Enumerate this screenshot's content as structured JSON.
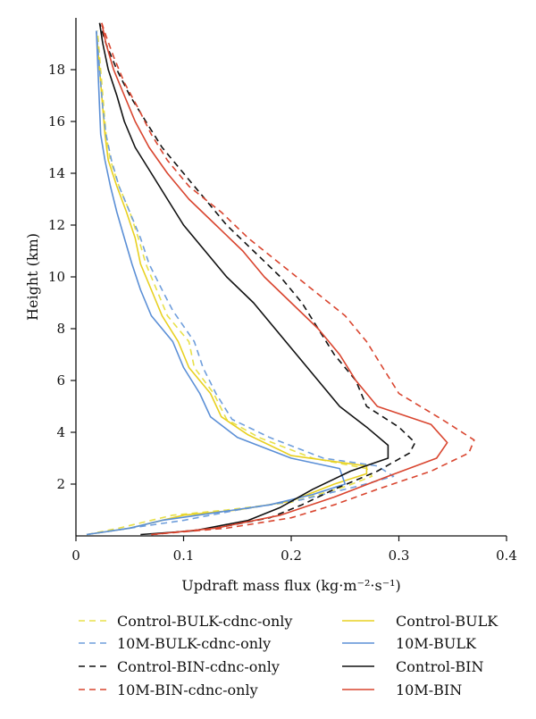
{
  "chart_data": {
    "type": "line",
    "title": "",
    "xlabel": "Updraft mass flux (kg·m⁻²·s⁻¹)",
    "ylabel": "Height (km)",
    "xlim": [
      0,
      0.4
    ],
    "ylim": [
      0,
      20
    ],
    "x_ticks": [
      0,
      0.1,
      0.2,
      0.3,
      0.4
    ],
    "x_tick_labels": [
      "0",
      "0.1",
      "0.2",
      "0.3",
      "0.4"
    ],
    "y_ticks": [
      2,
      4,
      6,
      8,
      10,
      12,
      14,
      16,
      18
    ],
    "y_tick_labels": [
      "2",
      "4",
      "6",
      "8",
      "10",
      "12",
      "14",
      "16",
      "18"
    ],
    "grid": false,
    "legend": "bottom, two columns",
    "series": [
      {
        "name": "Control-BULK-cdnc-only",
        "color": "#e8e04a",
        "dash": "dashed",
        "points": [
          [
            0.01,
            0.05
          ],
          [
            0.04,
            0.3
          ],
          [
            0.09,
            0.8
          ],
          [
            0.14,
            1.0
          ],
          [
            0.2,
            1.3
          ],
          [
            0.25,
            1.9
          ],
          [
            0.275,
            2.3
          ],
          [
            0.27,
            2.6
          ],
          [
            0.22,
            3.0
          ],
          [
            0.17,
            3.8
          ],
          [
            0.14,
            4.5
          ],
          [
            0.128,
            5.5
          ],
          [
            0.11,
            6.5
          ],
          [
            0.105,
            7.5
          ],
          [
            0.085,
            8.5
          ],
          [
            0.075,
            9.5
          ],
          [
            0.065,
            10.5
          ],
          [
            0.058,
            11.5
          ],
          [
            0.05,
            12.5
          ],
          [
            0.04,
            13.5
          ],
          [
            0.032,
            14.5
          ],
          [
            0.028,
            15.5
          ],
          [
            0.026,
            16.5
          ],
          [
            0.024,
            17.5
          ],
          [
            0.022,
            18.5
          ],
          [
            0.02,
            19.5
          ]
        ]
      },
      {
        "name": "Control-BULK",
        "color": "#e8d020",
        "dash": "solid",
        "points": [
          [
            0.01,
            0.05
          ],
          [
            0.05,
            0.3
          ],
          [
            0.1,
            0.8
          ],
          [
            0.15,
            1.0
          ],
          [
            0.2,
            1.35
          ],
          [
            0.24,
            2.0
          ],
          [
            0.27,
            2.4
          ],
          [
            0.27,
            2.7
          ],
          [
            0.2,
            3.1
          ],
          [
            0.16,
            3.9
          ],
          [
            0.135,
            4.6
          ],
          [
            0.125,
            5.5
          ],
          [
            0.105,
            6.5
          ],
          [
            0.095,
            7.5
          ],
          [
            0.08,
            8.5
          ],
          [
            0.07,
            9.5
          ],
          [
            0.06,
            10.5
          ],
          [
            0.055,
            11.5
          ],
          [
            0.047,
            12.5
          ],
          [
            0.038,
            13.5
          ],
          [
            0.03,
            14.5
          ],
          [
            0.027,
            15.5
          ],
          [
            0.025,
            16.5
          ],
          [
            0.023,
            17.5
          ],
          [
            0.021,
            18.5
          ],
          [
            0.019,
            19.5
          ]
        ]
      },
      {
        "name": "10M-BULK-cdnc-only",
        "color": "#6f9edc",
        "dash": "dashed",
        "points": [
          [
            0.01,
            0.05
          ],
          [
            0.05,
            0.3
          ],
          [
            0.1,
            0.6
          ],
          [
            0.15,
            1.0
          ],
          [
            0.21,
            1.4
          ],
          [
            0.26,
            1.9
          ],
          [
            0.295,
            2.3
          ],
          [
            0.28,
            2.7
          ],
          [
            0.23,
            3.0
          ],
          [
            0.18,
            3.8
          ],
          [
            0.145,
            4.5
          ],
          [
            0.13,
            5.5
          ],
          [
            0.118,
            6.5
          ],
          [
            0.11,
            7.5
          ],
          [
            0.09,
            8.7
          ],
          [
            0.08,
            9.5
          ],
          [
            0.068,
            10.5
          ],
          [
            0.06,
            11.5
          ],
          [
            0.05,
            12.5
          ],
          [
            0.04,
            13.5
          ],
          [
            0.033,
            14.5
          ],
          [
            0.028,
            15.5
          ],
          [
            0.025,
            16.5
          ],
          [
            0.023,
            17.5
          ],
          [
            0.021,
            18.5
          ],
          [
            0.019,
            19.5
          ]
        ]
      },
      {
        "name": "10M-BULK",
        "color": "#5b8fd6",
        "dash": "solid",
        "points": [
          [
            0.01,
            0.05
          ],
          [
            0.05,
            0.3
          ],
          [
            0.08,
            0.6
          ],
          [
            0.13,
            0.9
          ],
          [
            0.18,
            1.2
          ],
          [
            0.22,
            1.6
          ],
          [
            0.25,
            2.0
          ],
          [
            0.245,
            2.6
          ],
          [
            0.2,
            3.0
          ],
          [
            0.15,
            3.8
          ],
          [
            0.125,
            4.6
          ],
          [
            0.115,
            5.5
          ],
          [
            0.1,
            6.5
          ],
          [
            0.09,
            7.5
          ],
          [
            0.07,
            8.5
          ],
          [
            0.06,
            9.5
          ],
          [
            0.052,
            10.5
          ],
          [
            0.045,
            11.5
          ],
          [
            0.038,
            12.5
          ],
          [
            0.032,
            13.5
          ],
          [
            0.027,
            14.5
          ],
          [
            0.023,
            15.5
          ],
          [
            0.022,
            16.5
          ],
          [
            0.021,
            17.5
          ],
          [
            0.02,
            18.5
          ],
          [
            0.019,
            19.5
          ]
        ]
      },
      {
        "name": "Control-BIN-cdnc-only",
        "color": "#111111",
        "dash": "dashed",
        "points": [
          [
            0.07,
            0.05
          ],
          [
            0.13,
            0.3
          ],
          [
            0.18,
            0.7
          ],
          [
            0.21,
            1.2
          ],
          [
            0.24,
            1.8
          ],
          [
            0.28,
            2.5
          ],
          [
            0.31,
            3.2
          ],
          [
            0.315,
            3.6
          ],
          [
            0.3,
            4.2
          ],
          [
            0.27,
            5.0
          ],
          [
            0.26,
            6.0
          ],
          [
            0.24,
            7.0
          ],
          [
            0.225,
            8.0
          ],
          [
            0.21,
            9.0
          ],
          [
            0.19,
            10.0
          ],
          [
            0.165,
            11.0
          ],
          [
            0.14,
            12.0
          ],
          [
            0.12,
            13.0
          ],
          [
            0.1,
            14.0
          ],
          [
            0.08,
            15.0
          ],
          [
            0.065,
            16.0
          ],
          [
            0.05,
            17.0
          ],
          [
            0.038,
            18.0
          ],
          [
            0.028,
            19.0
          ],
          [
            0.022,
            19.8
          ]
        ]
      },
      {
        "name": "Control-BIN",
        "color": "#111111",
        "dash": "solid",
        "points": [
          [
            0.06,
            0.05
          ],
          [
            0.11,
            0.2
          ],
          [
            0.16,
            0.6
          ],
          [
            0.19,
            1.1
          ],
          [
            0.22,
            1.8
          ],
          [
            0.255,
            2.5
          ],
          [
            0.29,
            3.0
          ],
          [
            0.29,
            3.5
          ],
          [
            0.27,
            4.2
          ],
          [
            0.245,
            5.0
          ],
          [
            0.225,
            6.0
          ],
          [
            0.205,
            7.0
          ],
          [
            0.185,
            8.0
          ],
          [
            0.165,
            9.0
          ],
          [
            0.14,
            10.0
          ],
          [
            0.12,
            11.0
          ],
          [
            0.1,
            12.0
          ],
          [
            0.085,
            13.0
          ],
          [
            0.07,
            14.0
          ],
          [
            0.055,
            15.0
          ],
          [
            0.045,
            16.0
          ],
          [
            0.038,
            17.0
          ],
          [
            0.03,
            18.0
          ],
          [
            0.025,
            19.0
          ],
          [
            0.022,
            19.8
          ]
        ]
      },
      {
        "name": "10M-BIN-cdnc-only",
        "color": "#d9452f",
        "dash": "dashed",
        "points": [
          [
            0.07,
            0.05
          ],
          [
            0.14,
            0.3
          ],
          [
            0.2,
            0.7
          ],
          [
            0.24,
            1.2
          ],
          [
            0.28,
            1.8
          ],
          [
            0.33,
            2.5
          ],
          [
            0.365,
            3.2
          ],
          [
            0.37,
            3.7
          ],
          [
            0.34,
            4.5
          ],
          [
            0.3,
            5.5
          ],
          [
            0.285,
            6.5
          ],
          [
            0.27,
            7.5
          ],
          [
            0.25,
            8.5
          ],
          [
            0.22,
            9.5
          ],
          [
            0.19,
            10.5
          ],
          [
            0.16,
            11.5
          ],
          [
            0.135,
            12.5
          ],
          [
            0.105,
            13.5
          ],
          [
            0.085,
            14.5
          ],
          [
            0.07,
            15.5
          ],
          [
            0.058,
            16.5
          ],
          [
            0.045,
            17.5
          ],
          [
            0.035,
            18.5
          ],
          [
            0.028,
            19.3
          ],
          [
            0.024,
            19.8
          ]
        ]
      },
      {
        "name": "10M-BIN",
        "color": "#d9452f",
        "dash": "solid",
        "points": [
          [
            0.07,
            0.05
          ],
          [
            0.13,
            0.3
          ],
          [
            0.19,
            0.8
          ],
          [
            0.24,
            1.5
          ],
          [
            0.29,
            2.3
          ],
          [
            0.335,
            3.0
          ],
          [
            0.345,
            3.6
          ],
          [
            0.33,
            4.3
          ],
          [
            0.28,
            5.0
          ],
          [
            0.26,
            6.0
          ],
          [
            0.245,
            7.0
          ],
          [
            0.225,
            8.0
          ],
          [
            0.2,
            9.0
          ],
          [
            0.175,
            10.0
          ],
          [
            0.155,
            11.0
          ],
          [
            0.13,
            12.0
          ],
          [
            0.105,
            13.0
          ],
          [
            0.085,
            14.0
          ],
          [
            0.068,
            15.0
          ],
          [
            0.055,
            16.0
          ],
          [
            0.045,
            17.0
          ],
          [
            0.035,
            18.0
          ],
          [
            0.028,
            19.0
          ],
          [
            0.024,
            19.8
          ]
        ]
      }
    ],
    "legend_left": [
      "Control-BULK-cdnc-only",
      "10M-BULK-cdnc-only",
      "Control-BIN-cdnc-only",
      "10M-BIN-cdnc-only"
    ],
    "legend_right": [
      "Control-BULK",
      "10M-BULK",
      "Control-BIN",
      "10M-BIN"
    ]
  }
}
